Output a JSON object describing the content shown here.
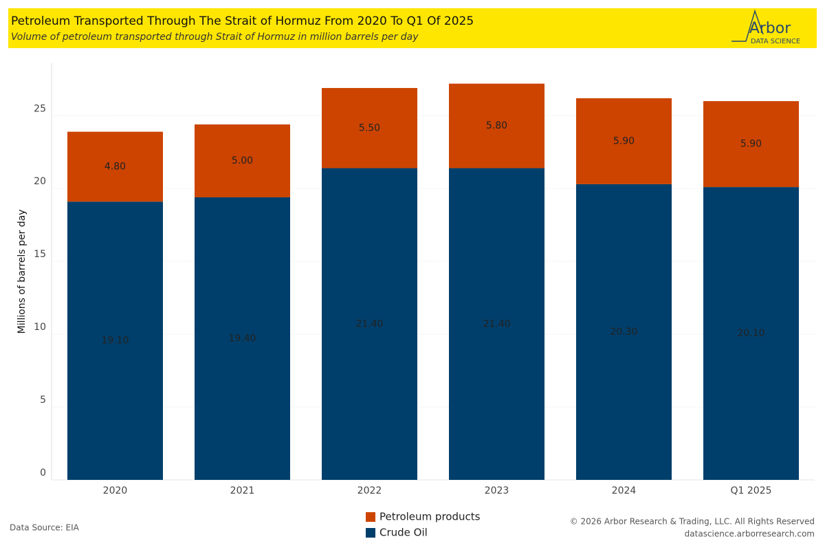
{
  "chart_data": {
    "type": "bar",
    "stacked": true,
    "title": "Petroleum Transported Through The Strait of Hormuz From 2020 To Q1 Of 2025",
    "subtitle": "Volume of petroleum transported through Strait of Hormuz in million barrels per day",
    "y_label": "Millions of barrels per day",
    "categories": [
      "2020",
      "2021",
      "2022",
      "2023",
      "2024",
      "Q1 2025"
    ],
    "series": [
      {
        "name": "Crude Oil",
        "color": "#003f6b",
        "values": [
          19.1,
          19.4,
          21.4,
          21.4,
          20.3,
          20.1
        ],
        "value_labels": [
          "19.10",
          "19.40",
          "21.40",
          "21.40",
          "20.30",
          "20.10"
        ]
      },
      {
        "name": "Petroleum products",
        "color": "#cc4400",
        "values": [
          4.8,
          5.0,
          5.5,
          5.8,
          5.9,
          5.9
        ],
        "value_labels": [
          "4.80",
          "5.00",
          "5.50",
          "5.80",
          "5.90",
          "5.90"
        ]
      }
    ],
    "ylim": [
      0,
      28.6
    ],
    "yticks": [
      0,
      5,
      10,
      15,
      20,
      25
    ],
    "grid": true
  },
  "logo": {
    "name": "Arbor",
    "tagline": "DATA SCIENCE"
  },
  "footer": {
    "source": "Data Source: EIA",
    "copyright": "© 2026 Arbor Research & Trading, LLC. All Rights Reserved",
    "website": "datascience.arborresearch.com"
  }
}
